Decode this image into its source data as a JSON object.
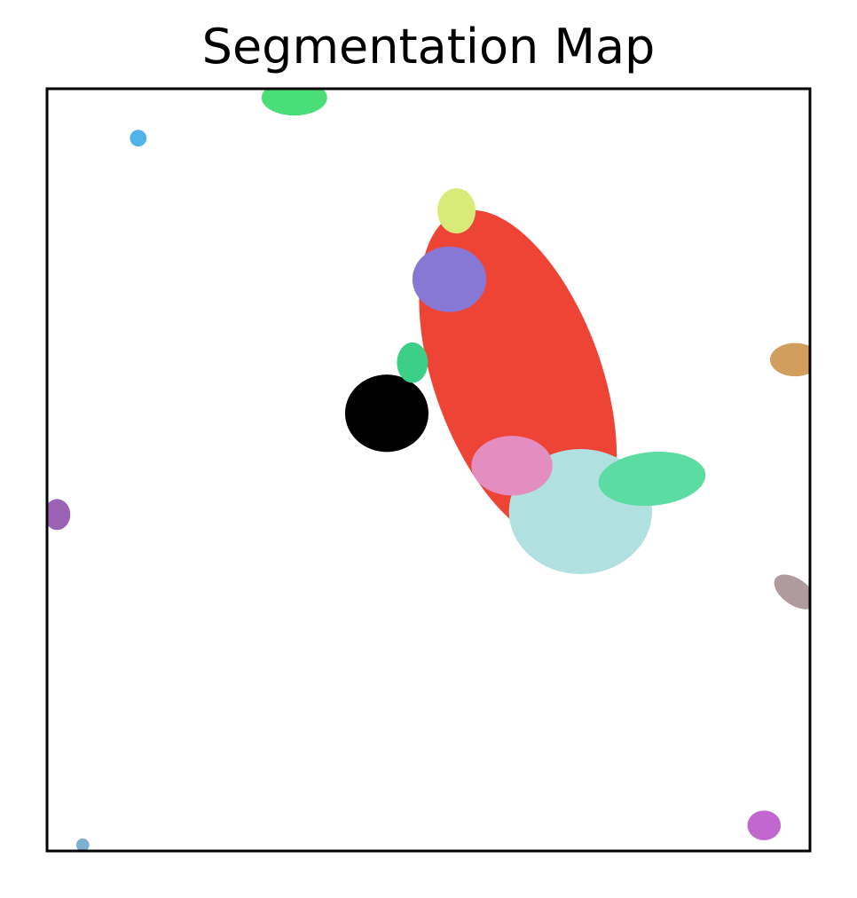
{
  "chart_data": {
    "type": "heatmap",
    "title": "Segmentation Map",
    "xlabel": "",
    "ylabel": "",
    "grid": false,
    "axis_ticks": false,
    "image_size": [
      128,
      128
    ],
    "background_color": "#ffffff",
    "segments": [
      {
        "id": 1,
        "color": "#ee4436",
        "center": [
          78.5,
          48.0
        ],
        "radii": [
          14.0,
          29.5
        ],
        "rotation": -20
      },
      {
        "id": 2,
        "color": "#b0e0e0",
        "center": [
          89.0,
          70.5
        ],
        "radii": [
          12.0,
          10.5
        ],
        "rotation": 0
      },
      {
        "id": 3,
        "color": "#5adca2",
        "center": [
          101.0,
          65.0
        ],
        "radii": [
          9.0,
          4.5
        ],
        "rotation": -5
      },
      {
        "id": 4,
        "color": "#e38dc0",
        "center": [
          77.5,
          62.8
        ],
        "radii": [
          6.8,
          5.0
        ],
        "rotation": 0
      },
      {
        "id": 5,
        "color": "#000000",
        "center": [
          56.5,
          54.0
        ],
        "radii": [
          7.0,
          6.5
        ],
        "rotation": 0
      },
      {
        "id": 6,
        "color": "#8878d6",
        "center": [
          67.0,
          31.5
        ],
        "radii": [
          6.2,
          5.5
        ],
        "rotation": 0
      },
      {
        "id": 7,
        "color": "#d8ea78",
        "center": [
          68.2,
          20.0
        ],
        "radii": [
          3.2,
          3.8
        ],
        "rotation": 0
      },
      {
        "id": 8,
        "color": "#3ccf86",
        "center": [
          60.8,
          45.5
        ],
        "radii": [
          2.6,
          3.4
        ],
        "rotation": 0
      },
      {
        "id": 9,
        "color": "#4ade78",
        "center": [
          41.0,
          1.0
        ],
        "radii": [
          5.5,
          3.0
        ],
        "rotation": 0
      },
      {
        "id": 10,
        "color": "#50b4ea",
        "center": [
          14.8,
          7.8
        ],
        "radii": [
          1.4,
          1.4
        ],
        "rotation": 0
      },
      {
        "id": 11,
        "color": "#d29e5e",
        "center": [
          125.0,
          45.0
        ],
        "radii": [
          4.2,
          2.8
        ],
        "rotation": 0
      },
      {
        "id": 12,
        "color": "#af9a9e",
        "center": [
          125.0,
          84.0
        ],
        "radii": [
          4.0,
          2.2
        ],
        "rotation": 35
      },
      {
        "id": 13,
        "color": "#9a63b6",
        "center": [
          1.2,
          71.0
        ],
        "radii": [
          2.2,
          2.6
        ],
        "rotation": 0
      },
      {
        "id": 14,
        "color": "#c266d0",
        "center": [
          119.8,
          123.2
        ],
        "radii": [
          2.8,
          2.5
        ],
        "rotation": 0
      },
      {
        "id": 15,
        "color": "#7eb0d0",
        "center": [
          5.5,
          126.5
        ],
        "radii": [
          1.1,
          1.1
        ],
        "rotation": 0
      }
    ]
  }
}
